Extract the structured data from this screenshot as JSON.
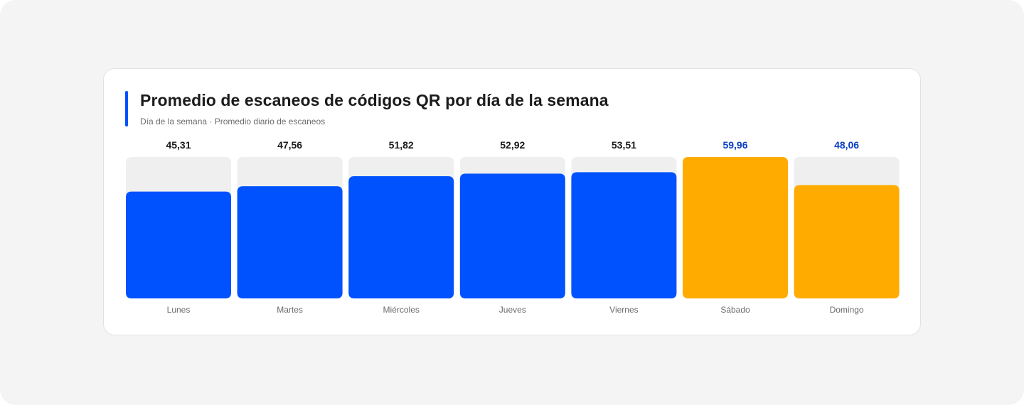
{
  "chart_data": {
    "type": "bar",
    "title": "Promedio de escaneos de códigos QR por día de la semana",
    "subtitle": "Día de la semana · Promedio diario de escaneos",
    "categories": [
      "Lunes",
      "Martes",
      "Miércoles",
      "Jueves",
      "Viernes",
      "Sábado",
      "Domingo"
    ],
    "values": [
      45.31,
      47.56,
      51.82,
      52.92,
      53.51,
      59.96,
      48.06
    ],
    "value_labels": [
      "45,31",
      "47,56",
      "51,82",
      "52,92",
      "53,51",
      "59,96",
      "48,06"
    ],
    "highlighted": [
      false,
      false,
      false,
      false,
      false,
      true,
      true
    ],
    "ylim": [
      0,
      59.96
    ],
    "grid": false,
    "legend": "none",
    "colors": {
      "bar": "#0052ff",
      "bar_highlight": "#ffab00",
      "track": "#efefef",
      "label": "#1b1b1b",
      "label_highlight": "#0a3fc2",
      "category": "#6b6b6b",
      "accent": "#0052ff"
    }
  }
}
